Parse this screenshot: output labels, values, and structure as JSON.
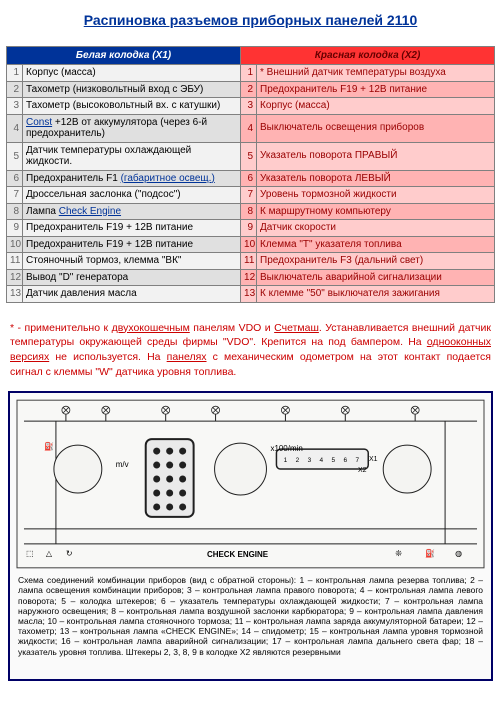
{
  "title": "Распиновка разъемов приборных панелей 2110",
  "table": {
    "headers": {
      "left": "Белая колодка (X1)",
      "right": "Красная колодка (X2)"
    },
    "rows": [
      {
        "n": 1,
        "l": "Корпус (масса)",
        "r": "* Внешний датчик температуры воздуха"
      },
      {
        "n": 2,
        "l": "Тахометр (низковольтный вход с ЭБУ)",
        "r": "Предохранитель F19 + 12В питание"
      },
      {
        "n": 3,
        "l": "Тахометр (высоковольтный вх. с катушки)",
        "r": "Корпус (масса)"
      },
      {
        "n": 4,
        "l": "Const +12В от аккумулятора (через 6-й предохранитель)",
        "r": "Выключатель освещения приборов"
      },
      {
        "n": 5,
        "l": "Датчик температуры охлаждающей жидкости.",
        "r": "Указатель поворота ПРАВЫЙ"
      },
      {
        "n": 6,
        "l": "Предохранитель F1 (габаритное освещ.)",
        "r": "Указатель поворота ЛЕВЫЙ"
      },
      {
        "n": 7,
        "l": "Дроссельная заслонка (\"подсос\")",
        "r": "Уровень тормозной жидкости"
      },
      {
        "n": 8,
        "l": "Лампа Check Engine",
        "r": "К маршрутному компьютеру"
      },
      {
        "n": 9,
        "l": "Предохранитель F19 + 12В питание",
        "r": "Датчик скорости"
      },
      {
        "n": 10,
        "l": "Предохранитель F19 + 12В питание",
        "r": "Клемма \"Т\" указателя топлива"
      },
      {
        "n": 11,
        "l": "Стояночный тормоз, клемма \"ВК\"",
        "r": "Предохранитель F3 (дальний свет)"
      },
      {
        "n": 12,
        "l": "Вывод \"D\" генератора",
        "r": "Выключатель аварийной сигнализации"
      },
      {
        "n": 13,
        "l": "Датчик давления масла",
        "r": "К клемме \"50\" выключателя зажигания"
      }
    ],
    "underlined_in": {
      "4": "Const",
      "6": "(габаритное освещ.)",
      "8": "Check Engine"
    }
  },
  "note_parts": [
    "* - применительно к ",
    "двухокошечным",
    " панелям VDO и ",
    "Счетмаш",
    ". Устанавливается внешний датчик температуры окружающей среды фирмы \"VDO\". Крепится на под бампером. На ",
    "однооконных версиях",
    " не используется. На ",
    "панелях",
    " с механическим одометром на этот контакт подается сигнал с клеммы \"W\" датчика уровня топлива."
  ],
  "diagram": {
    "label_check": "CHECK ENGINE",
    "caption": "Схема соединений комбинации приборов (вид с обратной стороны): 1 – контрольная лампа резерва топлива; 2 – лампа освещения комбинации приборов; 3 – контрольная лампа правого поворота; 4 – контрольная лампа левого поворота; 5 – колодка штекеров; 6 – указатель температуры охлаждающей жидкости; 7 – контрольная лампа наружного освещения; 8 – контрольная лампа воздушной заслонки карбюратора; 9 – контрольная лампа давления масла; 10 – контрольная лампа стояночного тормоза; 11 – контрольная лампа заряда аккумуляторной батареи; 12 – тахометр; 13 – контрольная лампа «CHECK ENGINE»; 14 – спидометр; 15 – контрольная лампа уровня тормозной жидкости; 16 – контрольная лампа аварийной сигнализации; 17 – контрольная лампа дальнего света фар; 18 – указатель уровня топлива. Штекеры 2, 3, 8, 9 в колодке X2 являются резервными"
  }
}
